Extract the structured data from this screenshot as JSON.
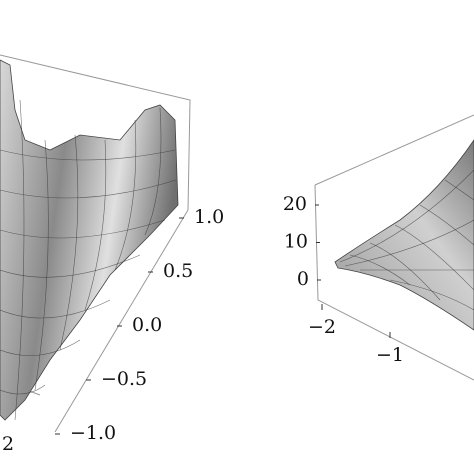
{
  "plots": [
    {
      "axes": [
        {
          "ticks": [
            {
              "value": 1,
              "label": "1.0"
            },
            {
              "value": 0.5,
              "label": "0.5"
            },
            {
              "value": 0,
              "label": "0.0"
            },
            {
              "value": -0.5,
              "label": "−0.5"
            },
            {
              "value": -1,
              "label": "−1.0"
            }
          ]
        },
        {
          "ticks": [
            2
          ]
        }
      ]
    },
    {
      "axes": [
        {
          "ticks": [
            20,
            10,
            0
          ]
        },
        {
          "ticks": [
            {
              "value": -2,
              "label": "−2"
            },
            {
              "value": -1,
              "label": "−1"
            }
          ]
        }
      ]
    }
  ]
}
